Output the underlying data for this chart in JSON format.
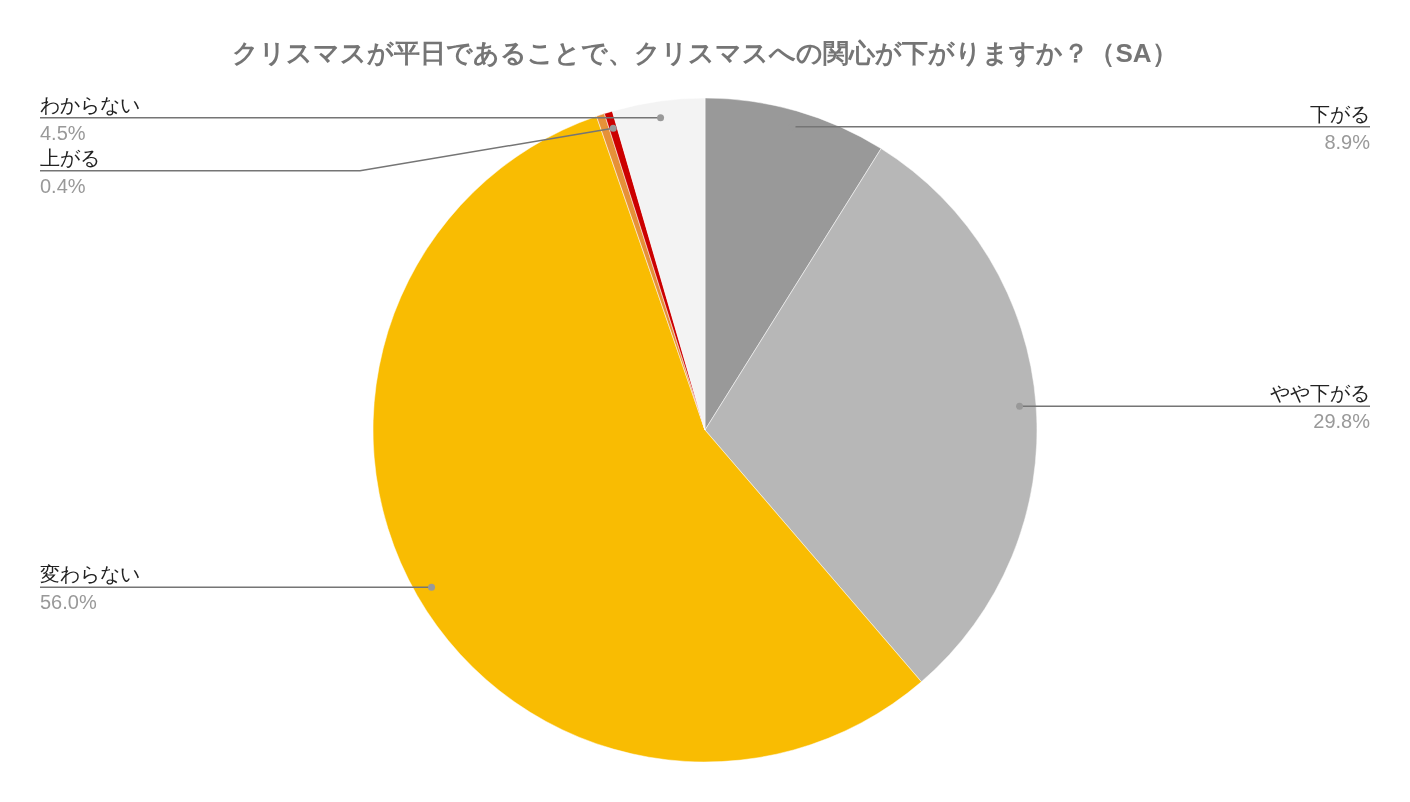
{
  "chart_data": {
    "type": "pie",
    "title": "クリスマスが平日であることで、クリスマスへの関心が下がりますか？（SA）",
    "categories": [
      "下がる",
      "やや下がる",
      "変わらない",
      null,
      "上がる",
      "わからない"
    ],
    "values": [
      8.9,
      29.8,
      56.0,
      0.4,
      0.4,
      4.5
    ],
    "value_labels": [
      "8.9%",
      "29.8%",
      "56.0%",
      null,
      "0.4%",
      "4.5%"
    ],
    "colors": [
      "#999999",
      "#b7b7b7",
      "#f9bc02",
      "#e69138",
      "#cc0000",
      "#f3f3f3"
    ],
    "legend": false
  }
}
